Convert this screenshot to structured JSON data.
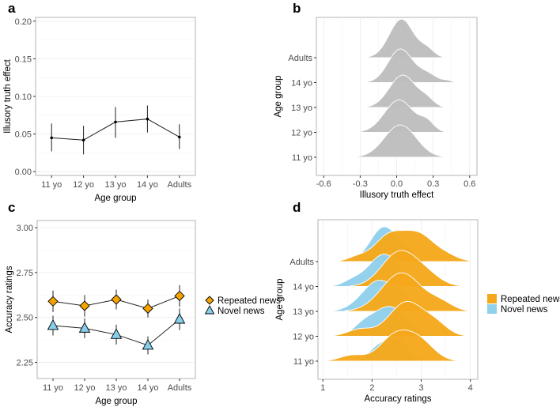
{
  "chart_data": [
    {
      "panel": "a",
      "type": "line",
      "categories": [
        "11 yo",
        "12 yo",
        "13 yo",
        "14 yo",
        "Adults"
      ],
      "values": [
        0.045,
        0.042,
        0.066,
        0.07,
        0.046
      ],
      "err_low": [
        0.027,
        0.023,
        0.045,
        0.052,
        0.03
      ],
      "err_high": [
        0.064,
        0.061,
        0.086,
        0.088,
        0.063
      ],
      "xlabel": "Age group",
      "ylabel": "Illusory truth effect",
      "ylim": [
        -0.005,
        0.205
      ],
      "yticks": [
        0,
        0.05,
        0.1,
        0.15,
        0.2
      ],
      "ytick_labels": [
        "0.00",
        "0.05",
        "0.10",
        "0.15",
        "0.20"
      ],
      "grid": true
    },
    {
      "panel": "b",
      "type": "area",
      "subtype": "ridgeline",
      "categories": [
        "11 yo",
        "12 yo",
        "13 yo",
        "14 yo",
        "Adults"
      ],
      "xlabel": "Illusory truth effect",
      "ylabel": "Age group",
      "xlim": [
        -0.66,
        0.66
      ],
      "xticks": [
        -0.6,
        -0.3,
        0,
        0.3,
        0.6
      ],
      "xtick_labels": [
        "-0.6",
        "-0.3",
        "0.0",
        "0.3",
        "0.6"
      ],
      "fill": "#bebebe",
      "density_components": [
        [
          [
            0.03,
            0.13,
            1.0
          ]
        ],
        [
          [
            0.02,
            0.12,
            0.9
          ],
          [
            0.25,
            0.06,
            0.25
          ]
        ],
        [
          [
            0.05,
            0.11,
            1.0
          ],
          [
            0.25,
            0.06,
            0.2
          ],
          [
            0.57,
            0.02,
            0.03
          ]
        ],
        [
          [
            0.03,
            0.1,
            1.0
          ],
          [
            0.25,
            0.08,
            0.25
          ],
          [
            0.42,
            0.04,
            0.05
          ]
        ],
        [
          [
            0.04,
            0.1,
            1.0
          ],
          [
            0.25,
            0.06,
            0.2
          ]
        ]
      ],
      "peak_heights": [
        1.3,
        1.3,
        1.3,
        1.35,
        1.55
      ]
    },
    {
      "panel": "c",
      "type": "line",
      "categories": [
        "11 yo",
        "12 yo",
        "13 yo",
        "14 yo",
        "Adults"
      ],
      "series": [
        {
          "name": "Repeated news",
          "values": [
            2.59,
            2.565,
            2.6,
            2.55,
            2.62
          ],
          "err": [
            0.06,
            0.06,
            0.055,
            0.05,
            0.06
          ],
          "color": "#f5a300",
          "marker": "diamond"
        },
        {
          "name": "Novel news",
          "values": [
            2.455,
            2.44,
            2.405,
            2.345,
            2.49
          ],
          "err": [
            0.055,
            0.055,
            0.055,
            0.05,
            0.06
          ],
          "color": "#87ceeb",
          "marker": "triangle"
        }
      ],
      "xlabel": "Age group",
      "ylabel": "Accuracy ratings",
      "ylim": [
        2.16,
        3.04
      ],
      "yticks": [
        2.25,
        2.5,
        2.75,
        3.0
      ],
      "ytick_labels": [
        "2.25",
        "2.50",
        "2.75",
        "3.00"
      ],
      "legend": "right",
      "grid": true
    },
    {
      "panel": "d",
      "type": "area",
      "subtype": "ridgeline",
      "categories": [
        "11 yo",
        "12 yo",
        "13 yo",
        "14 yo",
        "Adults"
      ],
      "xlabel": "Accuracy ratings",
      "ylabel": "Age group",
      "xlim": [
        0.9,
        4.15
      ],
      "xticks": [
        1,
        2,
        3,
        4
      ],
      "xtick_labels": [
        "1",
        "2",
        "3",
        "4"
      ],
      "legend": "right",
      "series": [
        {
          "name": "Repeated news",
          "color": "#f5a81c",
          "density_components": [
            [
              [
                1.6,
                0.25,
                0.25
              ],
              [
                2.45,
                0.3,
                1.0
              ],
              [
                2.95,
                0.3,
                0.85
              ]
            ],
            [
              [
                1.75,
                0.25,
                0.2
              ],
              [
                2.7,
                0.35,
                1.0
              ],
              [
                3.3,
                0.25,
                0.3
              ]
            ],
            [
              [
                2.6,
                0.4,
                1.0
              ],
              [
                3.4,
                0.25,
                0.2
              ]
            ],
            [
              [
                2.55,
                0.35,
                1.0
              ],
              [
                3.1,
                0.3,
                0.3
              ]
            ],
            [
              [
                2.35,
                0.3,
                0.9
              ],
              [
                2.95,
                0.3,
                0.9
              ],
              [
                3.5,
                0.25,
                0.2
              ],
              [
                1.7,
                0.2,
                0.15
              ]
            ]
          ],
          "peak_heights": [
            1.25,
            1.4,
            1.55,
            1.45,
            1.25
          ]
        },
        {
          "name": "Novel news",
          "color": "#8fd0ec",
          "density_components": [
            [
              [
                2.45,
                0.25,
                1.0
              ],
              [
                2.05,
                0.15,
                0.3
              ]
            ],
            [
              [
                2.35,
                0.35,
                1.0
              ],
              [
                1.8,
                0.2,
                0.25
              ]
            ],
            [
              [
                2.15,
                0.35,
                1.0
              ],
              [
                2.6,
                0.15,
                0.3
              ]
            ],
            [
              [
                2.25,
                0.32,
                1.0
              ],
              [
                1.6,
                0.2,
                0.15
              ]
            ],
            [
              [
                2.25,
                0.28,
                1.0
              ],
              [
                2.7,
                0.15,
                0.2
              ]
            ]
          ],
          "peak_heights": [
            1.0,
            1.2,
            1.25,
            1.3,
            1.4
          ]
        }
      ]
    }
  ],
  "panel_labels": [
    "a",
    "b",
    "c",
    "d"
  ]
}
